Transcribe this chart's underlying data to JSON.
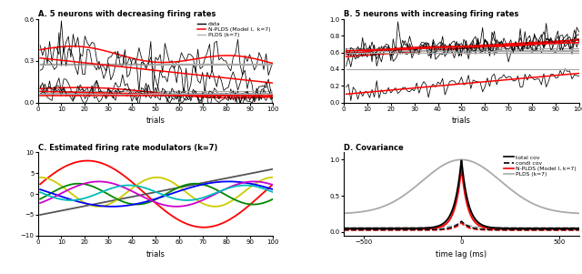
{
  "title_A": "A. 5 neurons with decreasing firing rates",
  "title_B": "B. 5 neurons with increasing firing rates",
  "title_C": "C. Estimated firing rate modulators (k=7)",
  "title_D": "D. Covariance",
  "xlabel_AB": "trials",
  "xlabel_C": "trials",
  "xlabel_D": "time lag (ms)",
  "n_trials": 100,
  "ylim_A": [
    0,
    0.6
  ],
  "ylim_B": [
    0,
    1.0
  ],
  "ylim_C": [
    -10,
    10
  ],
  "yticks_A": [
    0.0,
    0.3,
    0.6
  ],
  "yticks_B": [
    0.0,
    0.2,
    0.4,
    0.6,
    0.8,
    1.0
  ],
  "xticks_AB": [
    0,
    10,
    20,
    30,
    40,
    50,
    60,
    70,
    80,
    90,
    100
  ],
  "yticks_C": [
    -10,
    -5,
    0,
    5,
    10
  ],
  "xticks_C": [
    0,
    10,
    20,
    30,
    40,
    50,
    60,
    70,
    80,
    90,
    100
  ],
  "modulator_colors": [
    "#ff0000",
    "#555555",
    "#cccc00",
    "#008800",
    "#0000ff",
    "#cc00cc",
    "#00bbbb"
  ],
  "cov_xlim": [
    -600,
    600
  ],
  "cov_xticks": [
    -500,
    0,
    500
  ],
  "cov_yticks": [
    0.0,
    0.5,
    1.0
  ]
}
